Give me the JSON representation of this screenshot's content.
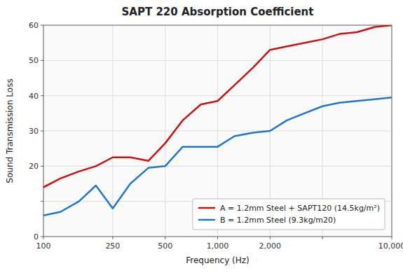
{
  "chart_data": {
    "type": "line",
    "title": "SAPT 220 Absorption Coefficient",
    "xlabel": "Frequency (Hz)",
    "ylabel": "Sound Transmission Loss",
    "log": "x",
    "grid": true,
    "legend": "lower right",
    "xlim": [
      100,
      10000
    ],
    "ylim": [
      0,
      60
    ],
    "xticks": [
      100,
      250,
      500,
      {
        "value": 1000,
        "label": "1,000"
      },
      {
        "value": 2000,
        "label": "2,000"
      },
      {
        "value": 4000,
        "label": null
      },
      {
        "value": 10000,
        "label": "10,000"
      }
    ],
    "yticks": [
      0,
      {
        "value": 10,
        "label": null
      },
      20,
      30,
      40,
      50,
      60
    ],
    "x": [
      100,
      125,
      160,
      200,
      250,
      315,
      400,
      500,
      630,
      800,
      1000,
      1250,
      1600,
      2000,
      2500,
      3150,
      4000,
      5000,
      6300,
      8000,
      10000
    ],
    "series": [
      {
        "name": "A = 1.2mm Steel + SAPT120 (14.5kg/m²)",
        "color": "#CC1111",
        "values": [
          14,
          16.5,
          18.5,
          20,
          22.5,
          22.5,
          21.5,
          26.5,
          33,
          37.5,
          38.5,
          43,
          48,
          53,
          54,
          55,
          56,
          57.5,
          58,
          59.5,
          60
        ]
      },
      {
        "name": "B = 1.2mm Steel (9.3kg/m20)",
        "color": "#2277CC",
        "values": [
          6,
          7,
          10,
          14.5,
          8,
          15,
          19.5,
          20,
          25.5,
          25.5,
          25.5,
          28.5,
          29.5,
          30,
          33,
          35,
          37,
          38,
          38.5,
          39,
          39.5
        ]
      }
    ]
  }
}
